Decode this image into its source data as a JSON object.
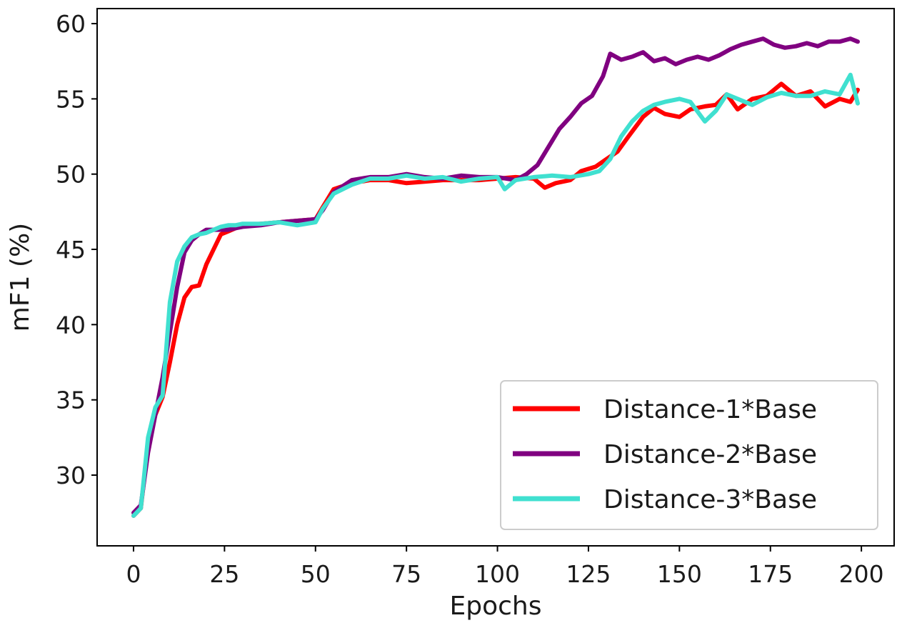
{
  "chart_data": {
    "type": "line",
    "title": "",
    "xlabel": "Epochs",
    "ylabel": "mF1 (%)",
    "xlim": [
      -10,
      209
    ],
    "ylim": [
      25.3,
      61.0
    ],
    "xticks": [
      0,
      25,
      50,
      75,
      100,
      125,
      150,
      175,
      200
    ],
    "yticks": [
      30,
      35,
      40,
      45,
      50,
      55,
      60
    ],
    "grid": false,
    "legend_position": "lower-right",
    "series": [
      {
        "name": "Distance-1*Base",
        "color": "#ff0000",
        "x": [
          0,
          2,
          4,
          6,
          8,
          10,
          12,
          14,
          16,
          18,
          20,
          22,
          24,
          26,
          28,
          30,
          35,
          40,
          45,
          50,
          52,
          55,
          60,
          65,
          70,
          75,
          80,
          85,
          90,
          95,
          100,
          105,
          110,
          113,
          116,
          120,
          123,
          127,
          130,
          133,
          136,
          140,
          143,
          146,
          150,
          153,
          157,
          160,
          163,
          166,
          170,
          174,
          178,
          182,
          186,
          190,
          194,
          197,
          199
        ],
        "values": [
          27.3,
          27.8,
          32.0,
          34.0,
          35.2,
          37.5,
          40.0,
          41.8,
          42.5,
          42.6,
          44.0,
          45.0,
          46.0,
          46.2,
          46.4,
          46.6,
          46.7,
          46.8,
          46.9,
          47.0,
          47.8,
          49.0,
          49.4,
          49.6,
          49.6,
          49.4,
          49.5,
          49.6,
          49.6,
          49.6,
          49.7,
          49.8,
          49.7,
          49.1,
          49.4,
          49.6,
          50.2,
          50.5,
          51.0,
          51.5,
          52.5,
          53.8,
          54.4,
          54.0,
          53.8,
          54.3,
          54.5,
          54.6,
          55.3,
          54.3,
          55.0,
          55.2,
          56.0,
          55.2,
          55.5,
          54.5,
          55.0,
          54.8,
          55.6
        ]
      },
      {
        "name": "Distance-2*Base",
        "color": "#800080",
        "x": [
          0,
          2,
          4,
          6,
          8,
          10,
          12,
          14,
          16,
          18,
          20,
          22,
          24,
          26,
          28,
          30,
          35,
          40,
          45,
          50,
          52,
          55,
          60,
          65,
          70,
          75,
          80,
          85,
          90,
          95,
          100,
          105,
          108,
          111,
          114,
          117,
          120,
          123,
          126,
          129,
          131,
          134,
          137,
          140,
          143,
          146,
          149,
          152,
          155,
          158,
          161,
          164,
          167,
          170,
          173,
          176,
          179,
          182,
          185,
          188,
          191,
          194,
          197,
          199
        ],
        "values": [
          27.5,
          28.0,
          31.5,
          34.0,
          36.5,
          39.5,
          42.5,
          44.8,
          45.6,
          46.0,
          46.3,
          46.3,
          46.3,
          46.3,
          46.4,
          46.5,
          46.6,
          46.8,
          46.9,
          47.0,
          47.6,
          48.8,
          49.6,
          49.8,
          49.8,
          50.0,
          49.8,
          49.7,
          49.9,
          49.8,
          49.8,
          49.6,
          50.0,
          50.6,
          51.8,
          53.0,
          53.8,
          54.7,
          55.2,
          56.5,
          58.0,
          57.6,
          57.8,
          58.1,
          57.5,
          57.7,
          57.3,
          57.6,
          57.8,
          57.6,
          57.9,
          58.3,
          58.6,
          58.8,
          59.0,
          58.6,
          58.4,
          58.5,
          58.7,
          58.5,
          58.8,
          58.8,
          59.0,
          58.8
        ]
      },
      {
        "name": "Distance-3*Base",
        "color": "#40e0d0",
        "x": [
          0,
          2,
          4,
          6,
          8,
          10,
          12,
          14,
          16,
          18,
          20,
          22,
          24,
          26,
          28,
          30,
          35,
          40,
          45,
          50,
          52,
          55,
          60,
          65,
          70,
          75,
          80,
          85,
          90,
          95,
          100,
          102,
          105,
          110,
          115,
          120,
          125,
          128,
          131,
          134,
          137,
          140,
          143,
          146,
          150,
          153,
          157,
          160,
          163,
          166,
          170,
          174,
          178,
          182,
          186,
          190,
          194,
          197,
          199
        ],
        "values": [
          27.3,
          27.8,
          32.5,
          34.5,
          35.3,
          41.5,
          44.2,
          45.2,
          45.8,
          46.0,
          46.1,
          46.3,
          46.5,
          46.6,
          46.6,
          46.7,
          46.7,
          46.8,
          46.6,
          46.8,
          47.7,
          48.7,
          49.3,
          49.7,
          49.7,
          49.9,
          49.7,
          49.8,
          49.5,
          49.7,
          49.8,
          49.0,
          49.6,
          49.8,
          49.9,
          49.8,
          50.0,
          50.2,
          51.0,
          52.5,
          53.5,
          54.2,
          54.6,
          54.8,
          55.0,
          54.8,
          53.5,
          54.2,
          55.3,
          55.0,
          54.6,
          55.1,
          55.4,
          55.2,
          55.2,
          55.5,
          55.3,
          56.6,
          54.7
        ]
      }
    ]
  }
}
